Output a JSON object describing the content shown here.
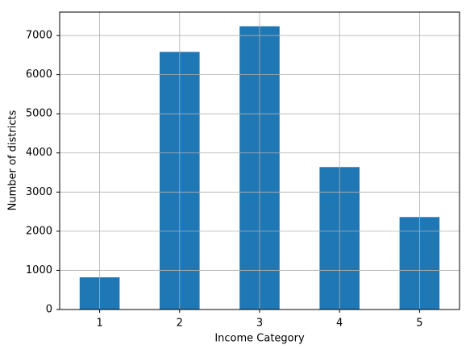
{
  "chart_data": {
    "type": "bar",
    "x_label": "Income Category",
    "y_label": "Number of districts",
    "categories": [
      "1",
      "2",
      "3",
      "4",
      "5"
    ],
    "values": [
      822,
      6581,
      7236,
      3639,
      2362
    ],
    "color": "#1f77b4",
    "ylim": [
      0,
      7598
    ],
    "yticks": [
      0,
      1000,
      2000,
      3000,
      4000,
      5000,
      6000,
      7000
    ],
    "grid": true
  }
}
